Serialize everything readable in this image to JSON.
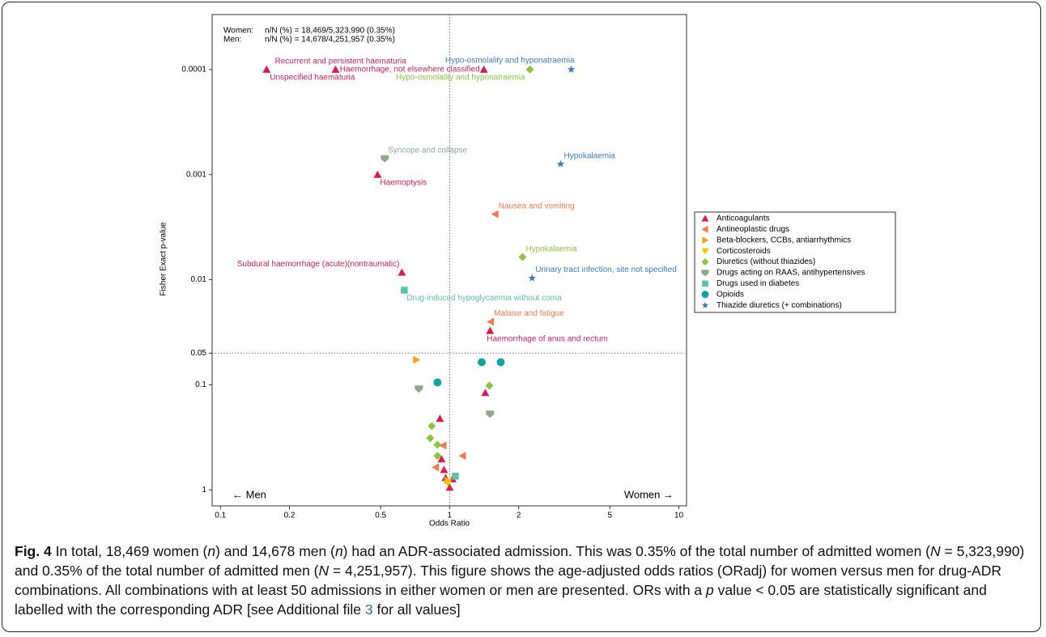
{
  "chart_data": {
    "type": "scatter",
    "xlog": true,
    "ylog": true,
    "x_label": "Odds Ratio",
    "y_label": "Fisher Exact p-value",
    "annotations": [
      "Women:",
      "n/N (%) = 18,469/5,323,990 (0.35%)",
      "Men:",
      "n/N (%) = 14,678/4,251,957 (0.35%)"
    ],
    "direction_labels": [
      "← Men",
      "Women →"
    ],
    "xlim": [
      0.092,
      10.8
    ],
    "ylim": [
      1.42,
      3e-05
    ],
    "xticks": [
      0.1,
      0.2,
      0.5,
      1,
      2,
      5,
      10
    ],
    "yticks": [
      0.0001,
      0.001,
      0.01,
      0.05,
      0.1,
      1
    ],
    "reference_lines": {
      "x": 1,
      "y": 0.05
    },
    "legend": "right",
    "series": [
      {
        "name": "Anticoagulants",
        "color": "#d91e4e",
        "marker": "triangle-up",
        "x": [
          0.159,
          0.318,
          1.41,
          0.485,
          0.619,
          1.5,
          1.43,
          0.907,
          0.922,
          0.945,
          0.96,
          1.03,
          1.0
        ],
        "values": [
          0.0001,
          0.0001,
          0.0001,
          0.001,
          0.00853,
          0.0306,
          0.119,
          0.21,
          0.51,
          0.643,
          0.768,
          0.79,
          0.948
        ],
        "labels": [
          "Unspecified haematuria",
          "Recurrent and persistent haematuria",
          "Haemorrhage, not elsewhere classified",
          "Haemoptysis",
          "Subdural haemorrhage (acute)(nontraumatic)",
          "Haemorrhage of anus and rectum",
          null,
          null,
          null,
          null,
          null,
          null,
          null
        ]
      },
      {
        "name": "Antineoplastic drugs",
        "color": "#f47b4f",
        "marker": "triangle-left",
        "x": [
          1.58,
          1.51,
          1.14,
          0.937,
          0.87
        ],
        "values": [
          0.00238,
          0.0251,
          0.475,
          0.378,
          0.61
        ],
        "labels": [
          "Nausea and vomiting",
          "Malaise and fatigue",
          null,
          null,
          null
        ]
      },
      {
        "name": "Beta-blockers, CCBs, antiarrhythmics",
        "color": "#f9a11b",
        "marker": "triangle-right",
        "x": [
          0.716,
          0.98
        ],
        "values": [
          0.0578,
          0.81
        ],
        "labels": [
          null,
          null
        ]
      },
      {
        "name": "Corticosteroids",
        "color": "#f5c400",
        "marker": "triangle-down",
        "x": [
          0.984
        ],
        "values": [
          0.853
        ],
        "labels": [
          null
        ]
      },
      {
        "name": "Diuretics (without thiazides)",
        "color": "#8cc63f",
        "marker": "diamond",
        "x": [
          2.24,
          2.08,
          1.49,
          0.836,
          0.823,
          0.885,
          0.885
        ],
        "values": [
          0.0001,
          0.0061,
          0.102,
          0.247,
          0.322,
          0.372,
          0.475
        ],
        "labels": [
          "Hypo-osmolality and hyponatraemia",
          "Hypokalaemia",
          null,
          null,
          null,
          null,
          null
        ]
      },
      {
        "name": "Drugs acting on RAAS, antihypertensives",
        "color": "#8aab8a",
        "marker": "shield",
        "x": [
          0.521,
          0.734,
          1.5
        ],
        "values": [
          0.000702,
          0.109,
          0.189
        ],
        "labels": [
          "Syncope and collapse",
          null,
          null
        ]
      },
      {
        "name": "Drugs used in diabetes",
        "color": "#5cc4a4",
        "marker": "square",
        "x": [
          0.634,
          1.06
        ],
        "values": [
          0.0126,
          0.74
        ],
        "labels": [
          "Drug-induced hypoglycaemia without coma",
          null
        ]
      },
      {
        "name": "Opioids",
        "color": "#17a3a6",
        "marker": "circle",
        "x": [
          0.885,
          1.38,
          1.67
        ],
        "values": [
          0.095,
          0.061,
          0.061
        ],
        "labels": [
          null,
          null,
          null
        ]
      },
      {
        "name": "Thiazide diuretics (+ combinations)",
        "color": "#3a7dbf",
        "marker": "star",
        "x": [
          3.39,
          3.05,
          2.29
        ],
        "values": [
          0.0001,
          0.000794,
          0.00966
        ],
        "labels": [
          "Hypo-osmolality and hyponatraemia",
          "Hypokalaemia",
          "Urinary tract infection, site not specified"
        ]
      }
    ]
  },
  "caption": [
    "Fig. 4",
    " In total, 18,469 women (",
    "n",
    ") and 14,678 men (",
    "n",
    ") had an ADR-associated admission. This was 0.35% of the total number of admitted women (",
    "N",
    " = 5,323,990) and 0.35% of the total number of admitted men (",
    "N",
    " = 4,251,957). This figure shows the age-adjusted odds ratios (ORadj) for women versus men for drug-ADR combinations. All combinations with at least 50 admissions in either women or men are presented. ORs with a ",
    "p",
    " value < 0.05 are statistically significant and labelled with the corresponding ADR [see Additional file ",
    "3",
    " for all values]"
  ]
}
